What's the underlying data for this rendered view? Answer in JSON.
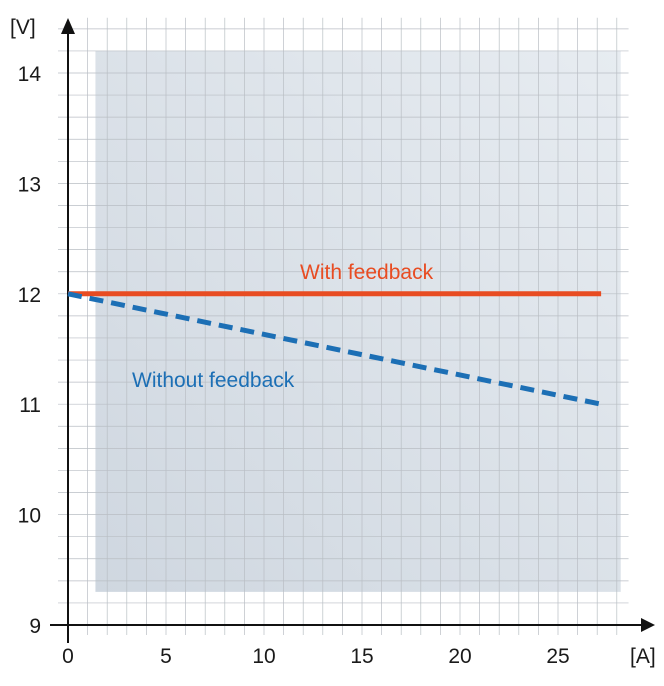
{
  "chart_data": {
    "type": "line",
    "xlabel": "[A]",
    "ylabel": "[V]",
    "xlim": [
      0,
      29
    ],
    "ylim": [
      9,
      14.5
    ],
    "x_ticks": [
      0,
      5,
      10,
      15,
      20,
      25
    ],
    "y_ticks": [
      9,
      10,
      11,
      12,
      13,
      14
    ],
    "grid": true,
    "shaded_region": {
      "x": [
        1.4,
        28.2
      ],
      "y": [
        9.3,
        14.2
      ]
    },
    "series": [
      {
        "name": "With feedback",
        "color": "#e84c22",
        "style": "solid",
        "x": [
          0,
          27.2
        ],
        "y": [
          12,
          12
        ]
      },
      {
        "name": "Without feedback",
        "color": "#1c6fb5",
        "style": "dashed",
        "x": [
          0,
          27.2
        ],
        "y": [
          12,
          11.0
        ]
      }
    ]
  }
}
